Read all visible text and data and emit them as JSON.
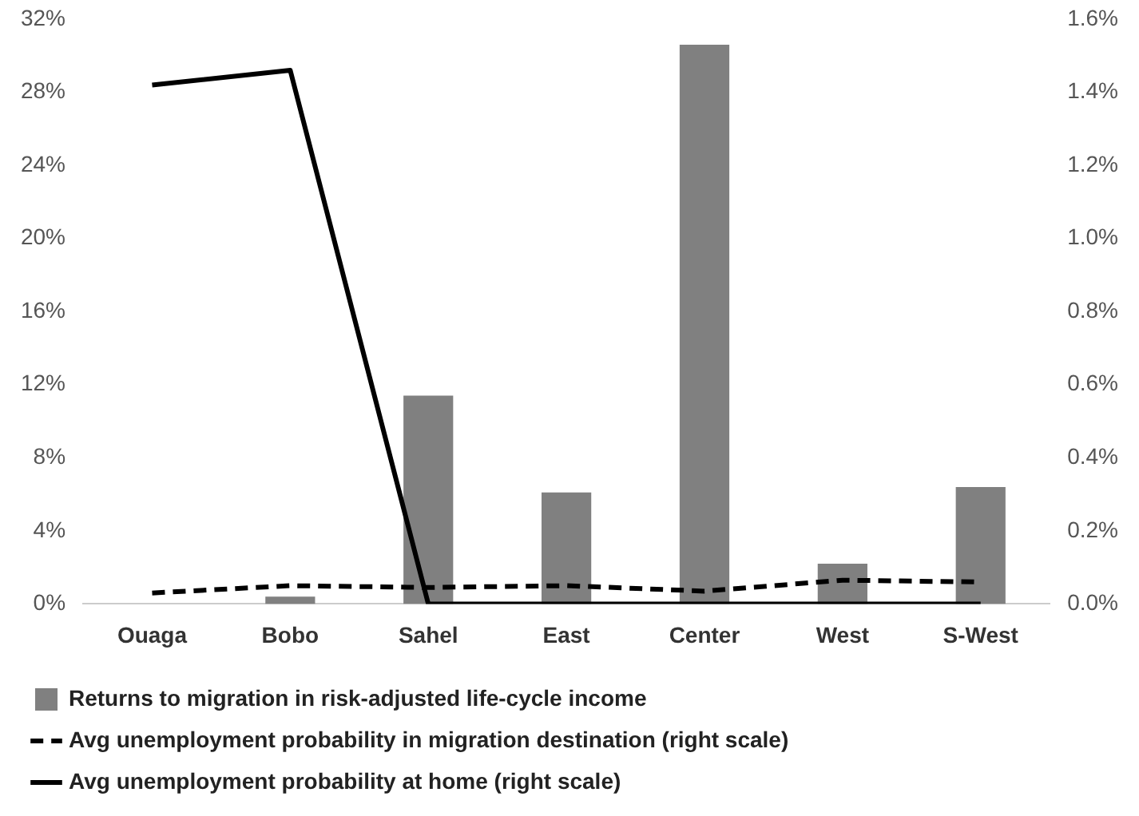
{
  "chart_data": {
    "type": "bar",
    "categories": [
      "Ouaga",
      "Bobo",
      "Sahel",
      "East",
      "Center",
      "West",
      "S-West"
    ],
    "series": [
      {
        "name": "Returns to migration in risk-adjusted life-cycle income",
        "color": "#808080",
        "values": [
          null,
          0.4,
          11.4,
          6.1,
          30.6,
          2.2,
          6.4
        ]
      },
      {
        "name": "Avg unemployment probability in migration destination (right scale)",
        "type": "line",
        "axis": "y2",
        "line_style": "dashed",
        "color": "#000000",
        "values": [
          0.03,
          0.05,
          0.045,
          0.05,
          0.035,
          0.065,
          0.06
        ]
      },
      {
        "name": "Avg unemployment probability at home (right scale)",
        "type": "line",
        "axis": "y2",
        "line_style": "solid",
        "color": "#000000",
        "values": [
          1.42,
          1.46,
          0,
          0,
          0,
          0,
          0
        ]
      }
    ],
    "ylim": [
      0,
      32
    ],
    "yticks": [
      {
        "value": 0,
        "label": "0%"
      },
      {
        "value": 4,
        "label": "4%"
      },
      {
        "value": 8,
        "label": "8%"
      },
      {
        "value": 12,
        "label": "12%"
      },
      {
        "value": 16,
        "label": "16%"
      },
      {
        "value": 20,
        "label": "20%"
      },
      {
        "value": 24,
        "label": "24%"
      },
      {
        "value": 28,
        "label": "28%"
      },
      {
        "value": 32,
        "label": "32%"
      }
    ],
    "y2lim": [
      0,
      1.6
    ],
    "y2ticks": [
      {
        "value": 0,
        "label": "0.0%"
      },
      {
        "value": 0.2,
        "label": "0.2%"
      },
      {
        "value": 0.4,
        "label": "0.4%"
      },
      {
        "value": 0.6,
        "label": "0.6%"
      },
      {
        "value": 0.8,
        "label": "0.8%"
      },
      {
        "value": 1.0,
        "label": "1.0%"
      },
      {
        "value": 1.2,
        "label": "1.2%"
      },
      {
        "value": 1.4,
        "label": "1.4%"
      },
      {
        "value": 1.6,
        "label": "1.6%"
      }
    ],
    "grid": false,
    "legend": "bottom",
    "marker": "none"
  }
}
